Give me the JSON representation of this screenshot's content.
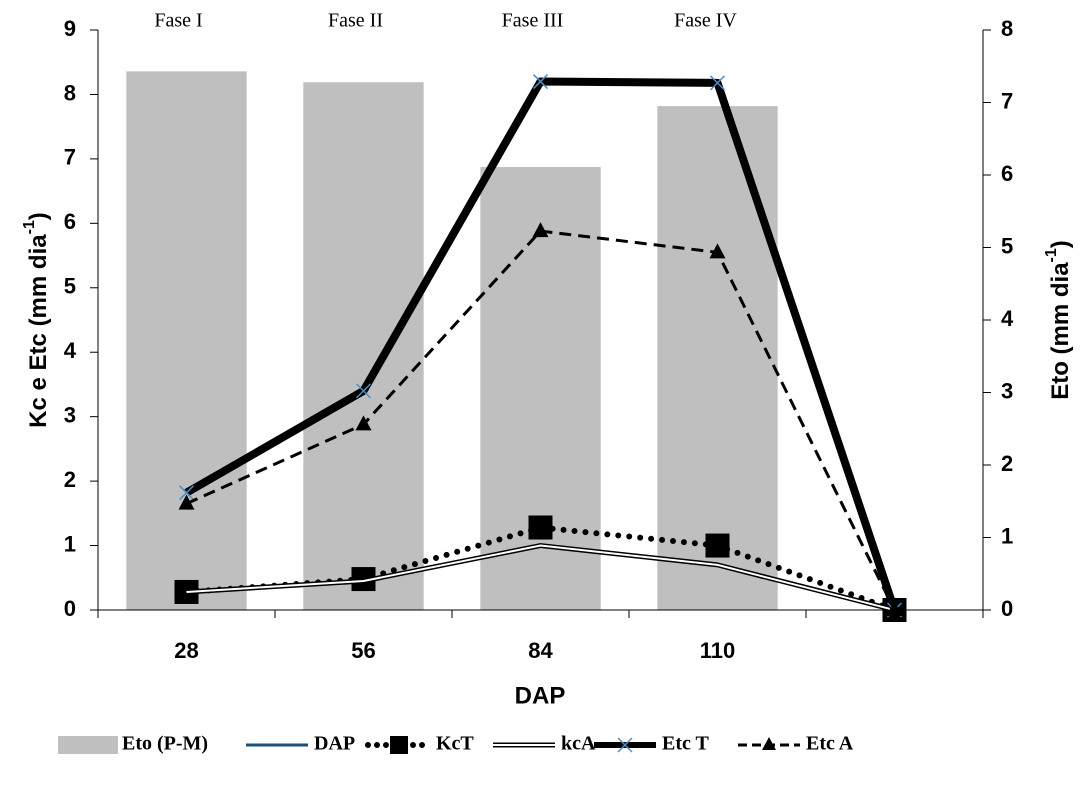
{
  "chart_data": {
    "type": "combo",
    "categories": [
      28,
      56,
      84,
      110,
      null
    ],
    "xlabel": "DAP",
    "ylabel": [
      "Kc e Etc (mm dia",
      "-1",
      ")"
    ],
    "y2label": [
      "Eto (mm dia",
      "-1",
      ")"
    ],
    "ylim": [
      0,
      9
    ],
    "yticks": [
      0,
      1,
      2,
      3,
      4,
      5,
      6,
      7,
      8,
      9
    ],
    "y2lim": [
      0,
      8
    ],
    "y2ticks": [
      0,
      1,
      2,
      3,
      4,
      5,
      6,
      7,
      8
    ],
    "annotations": [
      "Fase I",
      "Fase II",
      "Fase III",
      "Fase IV"
    ],
    "legend": "bottom",
    "series": [
      {
        "name": "Eto (P-M)",
        "type": "bar",
        "axis": "y2",
        "color": "#bfbfbf",
        "values": [
          7.43,
          7.28,
          6.11,
          6.95,
          null
        ]
      },
      {
        "name": "DAP",
        "type": "line",
        "color": "#1f4e79",
        "line": "solid",
        "width": 3,
        "marker": "none",
        "values": [
          null,
          null,
          null,
          null,
          null
        ]
      },
      {
        "name": "KcT",
        "type": "line",
        "color": "#000000",
        "line": "dotted",
        "width": 6,
        "marker": "square",
        "values": [
          0.28,
          0.48,
          1.28,
          1.0,
          0
        ]
      },
      {
        "name": "kcA",
        "type": "line",
        "color": "#000000",
        "line": "double",
        "width": 5,
        "marker": "none",
        "values": [
          0.28,
          0.45,
          1.0,
          0.7,
          0
        ]
      },
      {
        "name": "Etc T",
        "type": "line",
        "color": "#000000",
        "line": "solid",
        "width": 8,
        "marker": "x",
        "values": [
          1.82,
          3.4,
          8.2,
          8.18,
          0
        ]
      },
      {
        "name": "Etc A",
        "type": "line",
        "color": "#000000",
        "line": "dashed",
        "width": 3,
        "marker": "triangle",
        "values": [
          1.65,
          2.88,
          5.88,
          5.55,
          0
        ]
      }
    ]
  }
}
